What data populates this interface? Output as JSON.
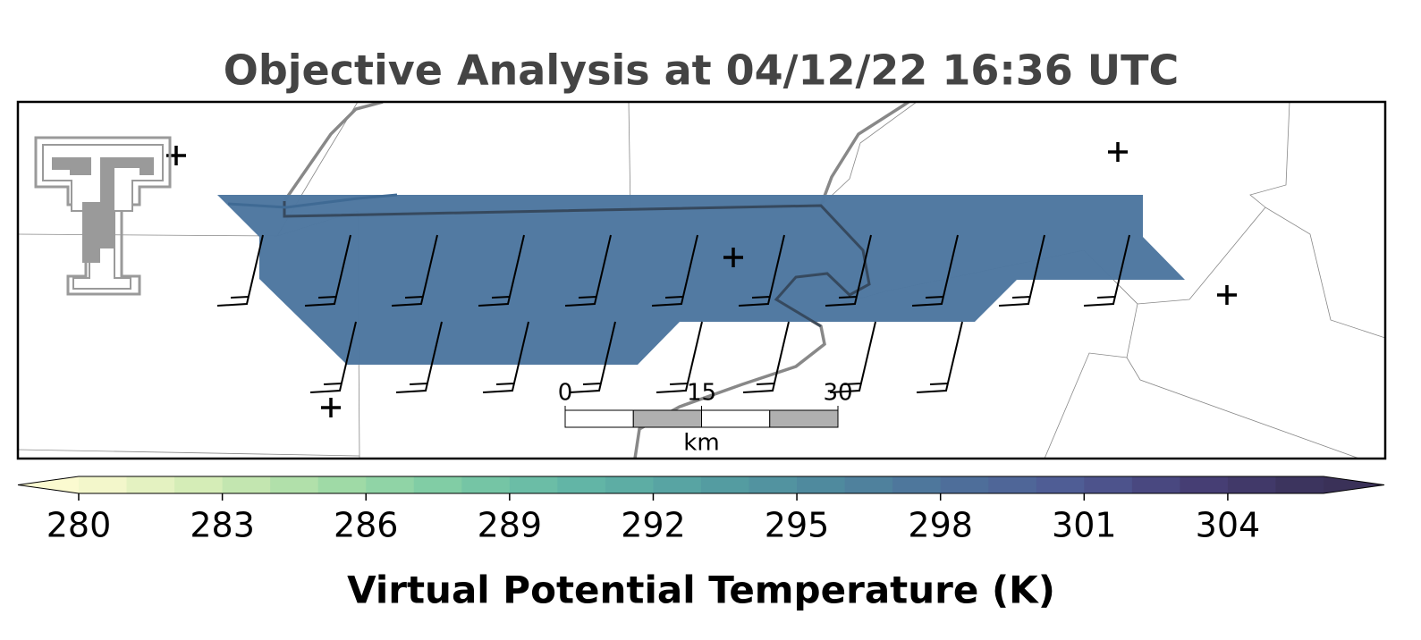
{
  "title": "Objective Analysis at 04/12/22 16:36 UTC",
  "colorbar": {
    "label": "Virtual Potential Temperature (K)",
    "lim": [
      280,
      306
    ],
    "ticks": [
      280,
      283,
      286,
      289,
      292,
      295,
      298,
      301,
      304
    ],
    "colormap": [
      "#fbfad0",
      "#d3ecb6",
      "#a4dca6",
      "#7ccba5",
      "#62b6a6",
      "#55a0a2",
      "#4f899e",
      "#4e719b",
      "#4f5a94",
      "#463f75",
      "#3a3158"
    ]
  },
  "scale_bar": {
    "ticks": [
      0,
      15,
      30
    ],
    "unit": "km"
  }
}
